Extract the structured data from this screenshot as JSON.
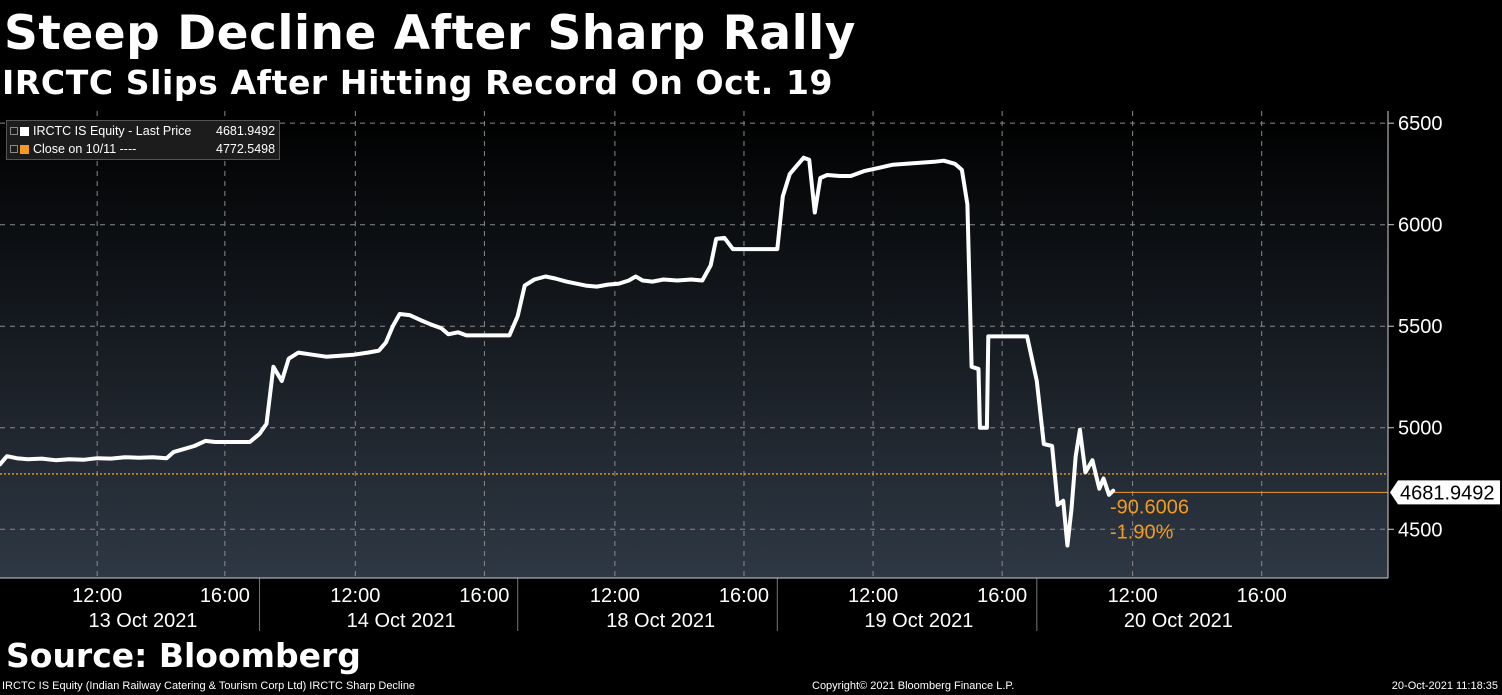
{
  "header": {
    "title": "Steep Decline After Sharp Rally",
    "subtitle": "IRCTC Slips After Hitting Record On Oct. 19"
  },
  "source": "Source: Bloomberg",
  "footer": {
    "left": "IRCTC IS Equity (Indian Railway Catering & Tourism Corp Ltd) IRCTC Sharp Decline",
    "center": "Copyright© 2021 Bloomberg Finance L.P.",
    "right": "20-Oct-2021 11:18:35"
  },
  "legend": {
    "items": [
      {
        "label": "IRCTC IS Equity - Last Price",
        "value": "4681.9492",
        "color": "#ffffff"
      },
      {
        "label": "Close on 10/11 ----",
        "value": "4772.5498",
        "color": "#f39a1f"
      }
    ]
  },
  "colors": {
    "background_top": "#000000",
    "background_bottom": "#2e3844",
    "price_line": "#ffffff",
    "reference": "#f39a1f",
    "grid": "#8a8a8a"
  },
  "chart_data": {
    "type": "line",
    "ylim": [
      4260,
      6560
    ],
    "xlim": [
      0,
      100
    ],
    "y_ticks": [
      4500,
      5000,
      5500,
      6000,
      6500
    ],
    "x_time_labels": [
      {
        "x": 7,
        "label": "12:00"
      },
      {
        "x": 16.2,
        "label": "16:00"
      },
      {
        "x": 25.6,
        "label": "12:00"
      },
      {
        "x": 34.9,
        "label": "16:00"
      },
      {
        "x": 44.3,
        "label": "12:00"
      },
      {
        "x": 53.6,
        "label": "16:00"
      },
      {
        "x": 62.9,
        "label": "12:00"
      },
      {
        "x": 72.2,
        "label": "16:00"
      },
      {
        "x": 81.6,
        "label": "12:00"
      },
      {
        "x": 90.9,
        "label": "16:00"
      }
    ],
    "x_day_labels": [
      {
        "x": 10.3,
        "label": "13 Oct 2021"
      },
      {
        "x": 28.9,
        "label": "14 Oct 2021"
      },
      {
        "x": 47.6,
        "label": "18 Oct 2021"
      },
      {
        "x": 66.2,
        "label": "19 Oct 2021"
      },
      {
        "x": 84.9,
        "label": "20 Oct 2021"
      }
    ],
    "day_boundaries": [
      18.7,
      37.3,
      56.0,
      74.7
    ],
    "reference_line": {
      "name": "Close on 10/11",
      "value": 4772.5498
    },
    "last_value_label": "4681.9492",
    "change_label": "-90.6006",
    "change_pct_label": "-1.90%",
    "series": [
      {
        "name": "IRCTC IS Equity - Last Price",
        "points": [
          [
            0.0,
            4820
          ],
          [
            0.5,
            4860
          ],
          [
            1.2,
            4850
          ],
          [
            2.0,
            4845
          ],
          [
            3.0,
            4848
          ],
          [
            4.0,
            4840
          ],
          [
            5.0,
            4845
          ],
          [
            6.0,
            4842
          ],
          [
            7.0,
            4850
          ],
          [
            8.0,
            4848
          ],
          [
            9.0,
            4855
          ],
          [
            10.0,
            4852
          ],
          [
            11.0,
            4855
          ],
          [
            12.0,
            4850
          ],
          [
            12.5,
            4880
          ],
          [
            13.0,
            4890
          ],
          [
            14.0,
            4910
          ],
          [
            14.8,
            4935
          ],
          [
            15.5,
            4930
          ],
          [
            17.0,
            4930
          ],
          [
            18.0,
            4930
          ],
          [
            18.7,
            4970
          ],
          [
            19.2,
            5020
          ],
          [
            19.7,
            5300
          ],
          [
            20.3,
            5230
          ],
          [
            20.8,
            5340
          ],
          [
            21.5,
            5370
          ],
          [
            22.5,
            5360
          ],
          [
            23.5,
            5350
          ],
          [
            24.5,
            5355
          ],
          [
            25.5,
            5360
          ],
          [
            26.5,
            5370
          ],
          [
            27.3,
            5380
          ],
          [
            27.8,
            5420
          ],
          [
            28.3,
            5500
          ],
          [
            28.8,
            5560
          ],
          [
            29.5,
            5555
          ],
          [
            30.3,
            5530
          ],
          [
            31.0,
            5510
          ],
          [
            31.8,
            5490
          ],
          [
            32.3,
            5460
          ],
          [
            33.0,
            5470
          ],
          [
            33.6,
            5455
          ],
          [
            34.5,
            5455
          ],
          [
            35.5,
            5455
          ],
          [
            36.7,
            5455
          ],
          [
            37.3,
            5550
          ],
          [
            37.8,
            5700
          ],
          [
            38.5,
            5730
          ],
          [
            39.3,
            5745
          ],
          [
            40.0,
            5735
          ],
          [
            40.8,
            5720
          ],
          [
            41.5,
            5710
          ],
          [
            42.2,
            5700
          ],
          [
            43.0,
            5695
          ],
          [
            43.8,
            5705
          ],
          [
            44.6,
            5710
          ],
          [
            45.3,
            5725
          ],
          [
            45.8,
            5745
          ],
          [
            46.3,
            5725
          ],
          [
            47.0,
            5720
          ],
          [
            47.8,
            5730
          ],
          [
            48.8,
            5725
          ],
          [
            49.8,
            5730
          ],
          [
            50.6,
            5725
          ],
          [
            51.2,
            5800
          ],
          [
            51.6,
            5930
          ],
          [
            52.2,
            5935
          ],
          [
            52.8,
            5880
          ],
          [
            55.6,
            5880
          ],
          [
            56.0,
            5880
          ],
          [
            56.4,
            6140
          ],
          [
            56.9,
            6250
          ],
          [
            57.4,
            6290
          ],
          [
            57.9,
            6330
          ],
          [
            58.3,
            6320
          ],
          [
            58.7,
            6060
          ],
          [
            59.1,
            6230
          ],
          [
            59.6,
            6245
          ],
          [
            60.5,
            6240
          ],
          [
            61.3,
            6240
          ],
          [
            62.3,
            6265
          ],
          [
            63.3,
            6280
          ],
          [
            64.3,
            6295
          ],
          [
            65.3,
            6300
          ],
          [
            66.3,
            6305
          ],
          [
            67.3,
            6310
          ],
          [
            68.0,
            6315
          ],
          [
            68.8,
            6300
          ],
          [
            69.3,
            6270
          ],
          [
            69.7,
            6100
          ],
          [
            70.0,
            5300
          ],
          [
            70.5,
            5290
          ],
          [
            70.6,
            5000
          ],
          [
            71.1,
            5000
          ],
          [
            71.2,
            5450
          ],
          [
            74.0,
            5450
          ],
          [
            74.7,
            5230
          ],
          [
            75.2,
            4920
          ],
          [
            75.8,
            4910
          ],
          [
            76.2,
            4620
          ],
          [
            76.6,
            4640
          ],
          [
            76.9,
            4420
          ],
          [
            77.2,
            4600
          ],
          [
            77.5,
            4860
          ],
          [
            77.8,
            4990
          ],
          [
            78.2,
            4780
          ],
          [
            78.7,
            4840
          ],
          [
            79.2,
            4700
          ],
          [
            79.5,
            4750
          ],
          [
            79.9,
            4670
          ],
          [
            80.2,
            4690
          ]
        ]
      }
    ]
  }
}
